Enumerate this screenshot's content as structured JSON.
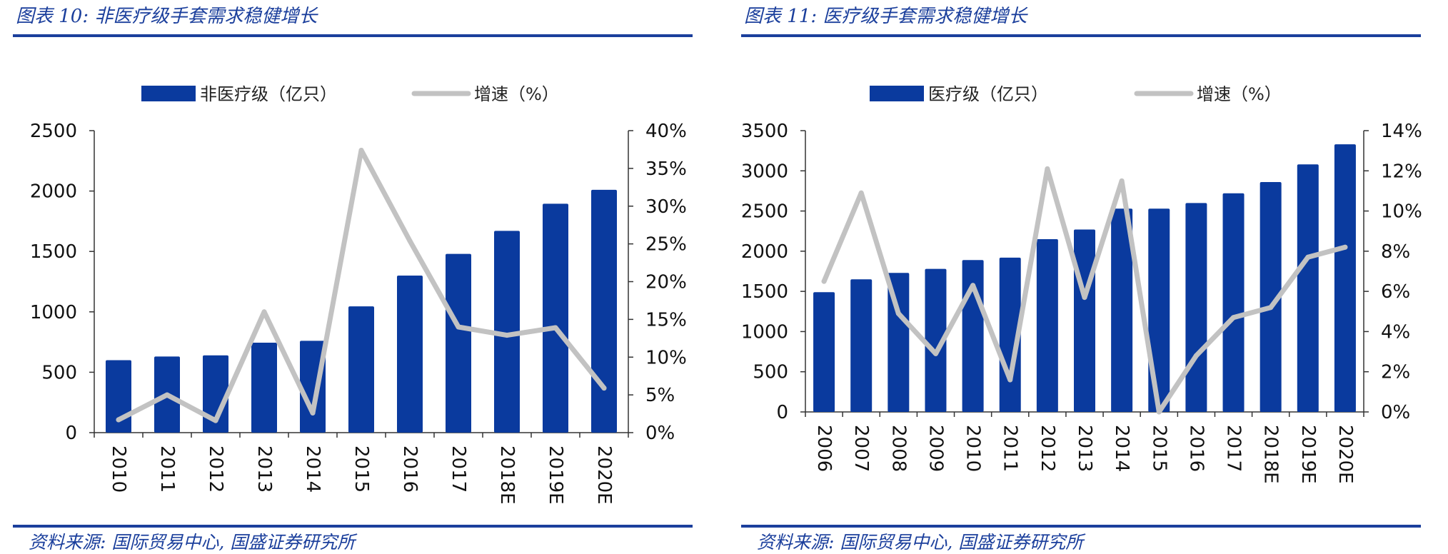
{
  "chart_data": [
    {
      "type": "bar",
      "title": "图表 10:  非医疗级手套需求稳健增长",
      "source": "资料来源:  国际贸易中心,  国盛证券研究所",
      "categories": [
        "2010",
        "2011",
        "2012",
        "2013",
        "2014",
        "2015",
        "2016",
        "2017",
        "2018E",
        "2019E",
        "2020E"
      ],
      "series": [
        {
          "name": "非医疗级（亿只）",
          "kind": "bar",
          "axis": "left",
          "values": [
            600,
            630,
            640,
            745,
            760,
            1045,
            1300,
            1480,
            1670,
            1895,
            2010
          ]
        },
        {
          "name": "增速（%）",
          "kind": "line",
          "axis": "right",
          "values": [
            1.7,
            5.0,
            1.6,
            16.0,
            2.6,
            37.4,
            25.4,
            14.0,
            12.9,
            13.9,
            5.9
          ]
        }
      ],
      "ylim": [
        0,
        2500
      ],
      "yticks": [
        "0",
        "500",
        "1000",
        "1500",
        "2000",
        "2500"
      ],
      "y2lim": [
        0,
        40
      ],
      "y2ticks": [
        "0%",
        "5%",
        "10%",
        "15%",
        "20%",
        "25%",
        "30%",
        "35%",
        "40%"
      ],
      "colors": {
        "bar": "#0a3a9e",
        "line": "#c2c2c2"
      }
    },
    {
      "type": "bar",
      "title": "图表 11:  医疗级手套需求稳健增长",
      "source": "资料来源:  国际贸易中心,  国盛证券研究所",
      "categories": [
        "2006",
        "2007",
        "2008",
        "2009",
        "2010",
        "2011",
        "2012",
        "2013",
        "2014",
        "2015",
        "2016",
        "2017",
        "2018E",
        "2019E",
        "2020E"
      ],
      "series": [
        {
          "name": "医疗级（亿只）",
          "kind": "bar",
          "axis": "left",
          "values": [
            1490,
            1650,
            1730,
            1780,
            1890,
            1920,
            2150,
            2270,
            2530,
            2530,
            2600,
            2720,
            2860,
            3080,
            3330
          ]
        },
        {
          "name": "增速（%）",
          "kind": "line",
          "axis": "right",
          "values": [
            6.5,
            10.9,
            4.9,
            2.9,
            6.3,
            1.6,
            12.1,
            5.7,
            11.5,
            0.0,
            2.8,
            4.7,
            5.2,
            7.7,
            8.2
          ]
        }
      ],
      "ylim": [
        0,
        3500
      ],
      "yticks": [
        "0",
        "500",
        "1000",
        "1500",
        "2000",
        "2500",
        "3000",
        "3500"
      ],
      "y2lim": [
        0,
        14
      ],
      "y2ticks": [
        "0%",
        "2%",
        "4%",
        "6%",
        "8%",
        "10%",
        "12%",
        "14%"
      ],
      "colors": {
        "bar": "#0a3a9e",
        "line": "#c2c2c2"
      }
    }
  ]
}
